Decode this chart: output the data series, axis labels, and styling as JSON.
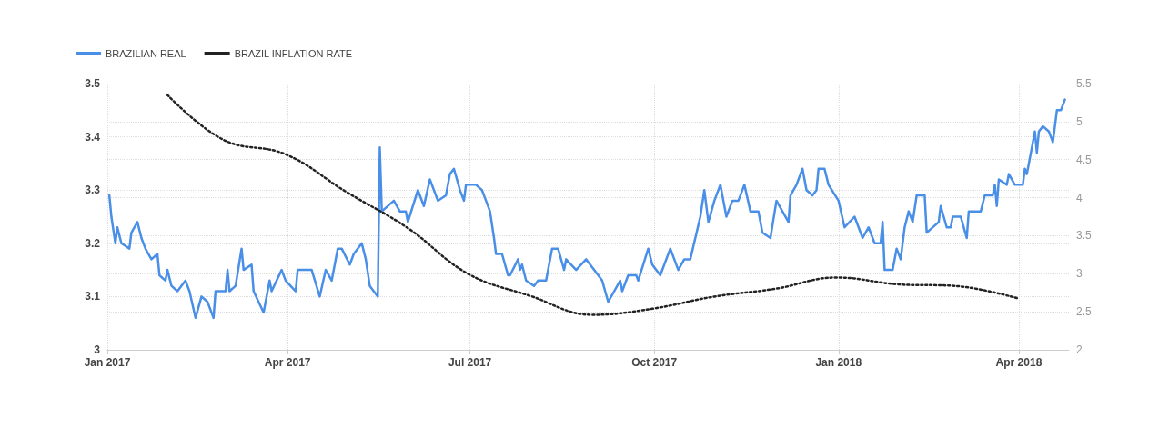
{
  "chart_data": {
    "type": "line",
    "legend": "top left",
    "grid": true,
    "xlim": [
      "2017-01-01",
      "2018-04-26"
    ],
    "xticks": [
      {
        "value": "2017-01-01",
        "label": "Jan 2017"
      },
      {
        "value": "2017-04-01",
        "label": "Apr 2017"
      },
      {
        "value": "2017-07-01",
        "label": "Jul 2017"
      },
      {
        "value": "2017-10-01",
        "label": "Oct 2017"
      },
      {
        "value": "2018-01-01",
        "label": "Jan 2018"
      },
      {
        "value": "2018-04-01",
        "label": "Apr 2018"
      }
    ],
    "ylim": [
      3,
      3.5
    ],
    "yticks": [
      3,
      3.1,
      3.2,
      3.3,
      3.4,
      3.5
    ],
    "y2lim": [
      2,
      5.5
    ],
    "y2ticks": [
      2,
      2.5,
      3,
      3.5,
      4,
      4.5,
      5,
      5.5
    ],
    "series": [
      {
        "name": "BRAZILIAN REAL",
        "color": "#4a8fe7",
        "line_style": "solid",
        "marker": "none",
        "x": [
          "2017-01-02",
          "2017-01-03",
          "2017-01-05",
          "2017-01-06",
          "2017-01-08",
          "2017-01-12",
          "2017-01-13",
          "2017-01-16",
          "2017-01-18",
          "2017-01-20",
          "2017-01-23",
          "2017-01-26",
          "2017-01-27",
          "2017-01-30",
          "2017-01-31",
          "2017-02-02",
          "2017-02-05",
          "2017-02-09",
          "2017-02-11",
          "2017-02-14",
          "2017-02-17",
          "2017-02-20",
          "2017-02-23",
          "2017-02-24",
          "2017-03-01",
          "2017-03-02",
          "2017-03-03",
          "2017-03-06",
          "2017-03-09",
          "2017-03-10",
          "2017-03-14",
          "2017-03-15",
          "2017-03-20",
          "2017-03-23",
          "2017-03-24",
          "2017-03-29",
          "2017-03-31",
          "2017-04-05",
          "2017-04-06",
          "2017-04-13",
          "2017-04-17",
          "2017-04-20",
          "2017-04-23",
          "2017-04-26",
          "2017-04-28",
          "2017-05-02",
          "2017-05-04",
          "2017-05-08",
          "2017-05-10",
          "2017-05-12",
          "2017-05-16",
          "2017-05-17",
          "2017-05-18",
          "2017-05-24",
          "2017-05-27",
          "2017-05-30",
          "2017-05-31",
          "2017-06-05",
          "2017-06-08",
          "2017-06-11",
          "2017-06-15",
          "2017-06-19",
          "2017-06-21",
          "2017-06-23",
          "2017-06-26",
          "2017-06-28",
          "2017-06-29",
          "2017-07-04",
          "2017-07-07",
          "2017-07-09",
          "2017-07-11",
          "2017-07-13",
          "2017-07-14",
          "2017-07-17",
          "2017-07-20",
          "2017-07-21",
          "2017-07-25",
          "2017-07-26",
          "2017-07-27",
          "2017-07-29",
          "2017-08-02",
          "2017-08-04",
          "2017-08-08",
          "2017-08-11",
          "2017-08-14",
          "2017-08-17",
          "2017-08-18",
          "2017-08-23",
          "2017-08-28",
          "2017-09-01",
          "2017-09-05",
          "2017-09-08",
          "2017-09-14",
          "2017-09-15",
          "2017-09-18",
          "2017-09-22",
          "2017-09-23",
          "2017-09-28",
          "2017-09-30",
          "2017-10-04",
          "2017-10-09",
          "2017-10-13",
          "2017-10-16",
          "2017-10-19",
          "2017-10-24",
          "2017-10-26",
          "2017-10-28",
          "2017-10-31",
          "2017-11-03",
          "2017-11-06",
          "2017-11-09",
          "2017-11-12",
          "2017-11-15",
          "2017-11-18",
          "2017-11-22",
          "2017-11-24",
          "2017-11-28",
          "2017-12-01",
          "2017-12-07",
          "2017-12-08",
          "2017-12-11",
          "2017-12-14",
          "2017-12-16",
          "2017-12-19",
          "2017-12-21",
          "2017-12-22",
          "2017-12-25",
          "2017-12-27",
          "2018-01-01",
          "2018-01-04",
          "2018-01-09",
          "2018-01-13",
          "2018-01-16",
          "2018-01-19",
          "2018-01-22",
          "2018-01-23",
          "2018-01-24",
          "2018-01-28",
          "2018-01-30",
          "2018-02-01",
          "2018-02-03",
          "2018-02-05",
          "2018-02-07",
          "2018-02-09",
          "2018-02-13",
          "2018-02-14",
          "2018-02-20",
          "2018-02-21",
          "2018-02-24",
          "2018-02-26",
          "2018-02-27",
          "2018-03-03",
          "2018-03-06",
          "2018-03-07",
          "2018-03-10",
          "2018-03-13",
          "2018-03-15",
          "2018-03-19",
          "2018-03-20",
          "2018-03-21",
          "2018-03-22",
          "2018-03-26",
          "2018-03-27",
          "2018-03-30",
          "2018-04-03",
          "2018-04-04",
          "2018-04-05",
          "2018-04-07",
          "2018-04-09",
          "2018-04-10",
          "2018-04-11",
          "2018-04-13",
          "2018-04-16",
          "2018-04-18",
          "2018-04-20",
          "2018-04-22",
          "2018-04-24"
        ],
        "values": [
          3.29,
          3.25,
          3.2,
          3.23,
          3.2,
          3.19,
          3.22,
          3.24,
          3.21,
          3.19,
          3.17,
          3.18,
          3.14,
          3.13,
          3.15,
          3.12,
          3.11,
          3.13,
          3.11,
          3.06,
          3.1,
          3.09,
          3.06,
          3.11,
          3.11,
          3.15,
          3.11,
          3.12,
          3.19,
          3.15,
          3.16,
          3.11,
          3.07,
          3.13,
          3.11,
          3.15,
          3.13,
          3.11,
          3.15,
          3.15,
          3.1,
          3.15,
          3.13,
          3.19,
          3.19,
          3.16,
          3.18,
          3.2,
          3.17,
          3.12,
          3.1,
          3.38,
          3.26,
          3.28,
          3.26,
          3.26,
          3.24,
          3.3,
          3.27,
          3.32,
          3.28,
          3.29,
          3.33,
          3.34,
          3.3,
          3.28,
          3.31,
          3.31,
          3.3,
          3.28,
          3.26,
          3.21,
          3.18,
          3.18,
          3.14,
          3.14,
          3.17,
          3.15,
          3.16,
          3.13,
          3.12,
          3.13,
          3.13,
          3.19,
          3.19,
          3.15,
          3.17,
          3.15,
          3.17,
          3.15,
          3.13,
          3.09,
          3.13,
          3.11,
          3.14,
          3.14,
          3.13,
          3.19,
          3.16,
          3.14,
          3.19,
          3.15,
          3.17,
          3.17,
          3.25,
          3.3,
          3.24,
          3.28,
          3.31,
          3.25,
          3.28,
          3.28,
          3.31,
          3.26,
          3.26,
          3.22,
          3.21,
          3.28,
          3.24,
          3.29,
          3.31,
          3.34,
          3.3,
          3.29,
          3.3,
          3.34,
          3.34,
          3.31,
          3.28,
          3.23,
          3.25,
          3.21,
          3.23,
          3.2,
          3.2,
          3.24,
          3.15,
          3.15,
          3.19,
          3.17,
          3.23,
          3.26,
          3.24,
          3.29,
          3.29,
          3.22,
          3.24,
          3.27,
          3.23,
          3.23,
          3.25,
          3.25,
          3.21,
          3.26,
          3.26,
          3.26,
          3.29,
          3.29,
          3.31,
          3.27,
          3.32,
          3.31,
          3.33,
          3.31,
          3.31,
          3.34,
          3.33,
          3.37,
          3.41,
          3.37,
          3.41,
          3.42,
          3.41,
          3.39,
          3.45,
          3.45,
          3.47
        ]
      },
      {
        "name": "BRAZIL INFLATION RATE",
        "color": "#222222",
        "line_style": "dotted",
        "marker": "none",
        "axis": "y2",
        "x": [
          "2017-01-31",
          "2017-02-28",
          "2017-03-31",
          "2017-04-30",
          "2017-05-31",
          "2017-06-30",
          "2017-07-31",
          "2017-08-31",
          "2017-09-30",
          "2017-10-31",
          "2017-11-30",
          "2017-12-31",
          "2018-01-31",
          "2018-02-28",
          "2018-03-31"
        ],
        "values": [
          5.35,
          4.76,
          4.57,
          4.08,
          3.6,
          3.0,
          2.71,
          2.46,
          2.54,
          2.7,
          2.8,
          2.95,
          2.86,
          2.84,
          2.68
        ]
      }
    ]
  }
}
